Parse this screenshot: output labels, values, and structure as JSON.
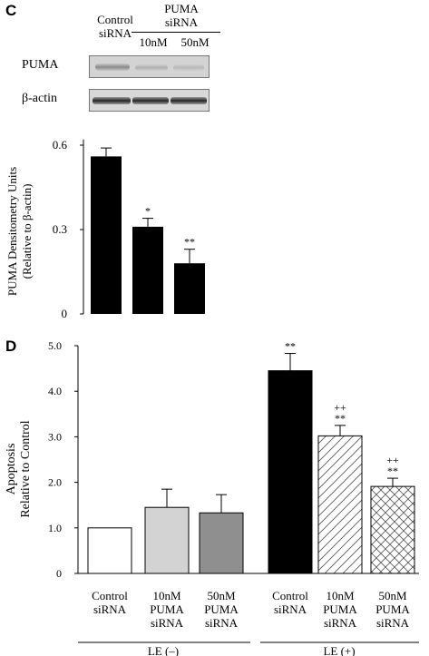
{
  "panel_c": {
    "letter": "C",
    "blot_header": {
      "control": [
        "Control",
        "siRNA"
      ],
      "puma": [
        "PUMA",
        "siRNA"
      ],
      "doses": [
        "10nM",
        "50nM"
      ]
    },
    "blot_rows": [
      "PUMA",
      "β-actin"
    ],
    "colors": {
      "bar": "#000000",
      "blot_bg": "#d2d2d2",
      "band": "#2a2a2a"
    }
  },
  "panel_d": {
    "letter": "D",
    "group_labels": [
      "LE  (–)",
      "LE (+)"
    ]
  },
  "chart_data": [
    {
      "type": "bar",
      "panel": "C",
      "ylabel": [
        "PUMA Densitometry  Units",
        "(Relative  to  β-actin)"
      ],
      "yticks": [
        "0",
        "0.3",
        "0.6"
      ],
      "ylim": [
        0,
        0.62
      ],
      "categories": [
        "Control siRNA",
        "10nM PUMA siRNA",
        "50nM PUMA siRNA"
      ],
      "values": [
        0.56,
        0.31,
        0.18
      ],
      "errors": [
        0.03,
        0.03,
        0.05
      ],
      "annotations": [
        "",
        "*",
        "**"
      ]
    },
    {
      "type": "bar",
      "panel": "D",
      "ylabel": [
        "Apoptosis",
        "Relative to Control"
      ],
      "yticks": [
        "0",
        "1.0",
        "2.0",
        "3.0",
        "4.0",
        "5.0"
      ],
      "ylim": [
        0,
        5.0
      ],
      "categories": [
        [
          "Control",
          "siRNA"
        ],
        [
          "10nM",
          "PUMA",
          "siRNA"
        ],
        [
          "50nM",
          "PUMA",
          "siRNA"
        ],
        [
          "Control",
          "siRNA"
        ],
        [
          "10nM",
          "PUMA",
          "siRNA"
        ],
        [
          "50nM",
          "PUMA",
          "siRNA"
        ]
      ],
      "values": [
        1.0,
        1.45,
        1.33,
        4.45,
        3.02,
        1.91
      ],
      "errors": [
        0,
        0.4,
        0.4,
        0.38,
        0.23,
        0.18
      ],
      "fills": [
        "white",
        "#d3d3d3",
        "#8f8f8f",
        "#000000",
        "hatch",
        "crosshatch"
      ],
      "annotations": [
        [],
        [],
        [],
        [
          "**"
        ],
        [
          "++",
          "**"
        ],
        [
          "++",
          "**"
        ]
      ]
    }
  ]
}
